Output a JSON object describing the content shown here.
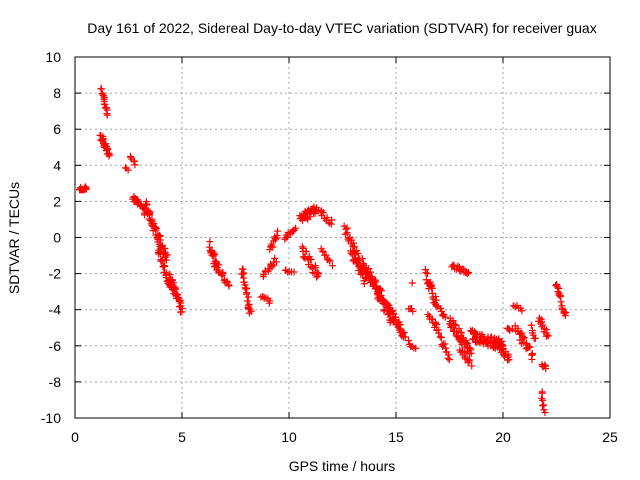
{
  "chart_data": {
    "type": "scatter",
    "title": "Day 161 of 2022, Sidereal Day-to-day VTEC variation (SDTVAR) for receiver guax",
    "xlabel": "GPS time / hours",
    "ylabel": "SDTVAR / TECUs",
    "xlim": [
      0,
      25
    ],
    "ylim": [
      -10,
      10
    ],
    "xticks": [
      0,
      5,
      10,
      15,
      20,
      25
    ],
    "yticks": [
      -10,
      -8,
      -6,
      -4,
      -2,
      0,
      2,
      4,
      6,
      8,
      10
    ],
    "grid": true,
    "marker": "+",
    "marker_color": "#ff0000",
    "series": [
      {
        "name": "SDTVAR",
        "segments": [
          {
            "x0": 0.2,
            "x1": 0.55,
            "y0": 2.7,
            "y1": 2.8,
            "spread": 0.25,
            "n": 18
          },
          {
            "x0": 1.25,
            "x1": 1.5,
            "y0": 8.2,
            "y1": 6.8,
            "spread": 0.3,
            "n": 18
          },
          {
            "x0": 1.2,
            "x1": 1.6,
            "y0": 5.6,
            "y1": 4.6,
            "spread": 0.4,
            "n": 22
          },
          {
            "x0": 2.35,
            "x1": 2.45,
            "y0": 3.9,
            "y1": 3.7,
            "spread": 0.1,
            "n": 3
          },
          {
            "x0": 2.6,
            "x1": 2.8,
            "y0": 4.5,
            "y1": 4.1,
            "spread": 0.15,
            "n": 6
          },
          {
            "x0": 2.7,
            "x1": 3.3,
            "y0": 2.3,
            "y1": 1.4,
            "spread": 0.4,
            "n": 22
          },
          {
            "x0": 3.3,
            "x1": 4.3,
            "y0": 1.8,
            "y1": -1.2,
            "spread": 0.6,
            "n": 55
          },
          {
            "x0": 3.9,
            "x1": 4.5,
            "y0": -0.8,
            "y1": -2.8,
            "spread": 0.5,
            "n": 30
          },
          {
            "x0": 4.4,
            "x1": 5.0,
            "y0": -2.2,
            "y1": -4.0,
            "spread": 0.6,
            "n": 34
          },
          {
            "x0": 6.3,
            "x1": 6.6,
            "y0": -0.3,
            "y1": -1.6,
            "spread": 0.5,
            "n": 16
          },
          {
            "x0": 6.5,
            "x1": 7.2,
            "y0": -1.4,
            "y1": -2.6,
            "spread": 0.4,
            "n": 20
          },
          {
            "x0": 7.8,
            "x1": 8.2,
            "y0": -1.8,
            "y1": -4.2,
            "spread": 0.6,
            "n": 24
          },
          {
            "x0": 8.7,
            "x1": 9.1,
            "y0": -3.2,
            "y1": -3.6,
            "spread": 0.2,
            "n": 8
          },
          {
            "x0": 8.8,
            "x1": 9.4,
            "y0": -2.2,
            "y1": -1.2,
            "spread": 0.4,
            "n": 14
          },
          {
            "x0": 9.1,
            "x1": 9.5,
            "y0": -0.8,
            "y1": 0.3,
            "spread": 0.4,
            "n": 12
          },
          {
            "x0": 9.8,
            "x1": 10.3,
            "y0": 0.0,
            "y1": 0.5,
            "spread": 0.3,
            "n": 12
          },
          {
            "x0": 9.8,
            "x1": 10.2,
            "y0": -1.8,
            "y1": -2.0,
            "spread": 0.2,
            "n": 6
          },
          {
            "x0": 10.5,
            "x1": 11.3,
            "y0": 1.0,
            "y1": 1.6,
            "spread": 0.5,
            "n": 34
          },
          {
            "x0": 10.6,
            "x1": 11.4,
            "y0": -0.6,
            "y1": -2.2,
            "spread": 0.6,
            "n": 26
          },
          {
            "x0": 11.4,
            "x1": 12.0,
            "y0": 1.4,
            "y1": 0.8,
            "spread": 0.4,
            "n": 12
          },
          {
            "x0": 11.5,
            "x1": 12.0,
            "y0": -0.8,
            "y1": -1.5,
            "spread": 0.4,
            "n": 10
          },
          {
            "x0": 12.6,
            "x1": 13.3,
            "y0": 0.6,
            "y1": -1.3,
            "spread": 0.5,
            "n": 22
          },
          {
            "x0": 12.9,
            "x1": 13.6,
            "y0": -0.8,
            "y1": -2.4,
            "spread": 0.6,
            "n": 26
          },
          {
            "x0": 13.4,
            "x1": 14.3,
            "y0": -1.4,
            "y1": -3.2,
            "spread": 0.6,
            "n": 44
          },
          {
            "x0": 14.1,
            "x1": 14.8,
            "y0": -3.0,
            "y1": -4.5,
            "spread": 0.6,
            "n": 34
          },
          {
            "x0": 14.6,
            "x1": 15.4,
            "y0": -3.8,
            "y1": -5.5,
            "spread": 0.6,
            "n": 40
          },
          {
            "x0": 15.6,
            "x1": 15.9,
            "y0": -5.8,
            "y1": -6.2,
            "spread": 0.2,
            "n": 6
          },
          {
            "x0": 15.6,
            "x1": 15.8,
            "y0": -3.9,
            "y1": -4.1,
            "spread": 0.2,
            "n": 4
          },
          {
            "x0": 15.7,
            "x1": 15.8,
            "y0": -2.5,
            "y1": -2.5,
            "spread": 0.05,
            "n": 1
          },
          {
            "x0": 16.4,
            "x1": 16.9,
            "y0": -2.0,
            "y1": -3.8,
            "spread": 0.6,
            "n": 24
          },
          {
            "x0": 16.5,
            "x1": 17.0,
            "y0": -4.4,
            "y1": -5.2,
            "spread": 0.4,
            "n": 14
          },
          {
            "x0": 17.0,
            "x1": 17.3,
            "y0": -3.8,
            "y1": -4.4,
            "spread": 0.3,
            "n": 8
          },
          {
            "x0": 17.1,
            "x1": 17.5,
            "y0": -5.5,
            "y1": -6.8,
            "spread": 0.4,
            "n": 12
          },
          {
            "x0": 17.6,
            "x1": 18.4,
            "y0": -1.6,
            "y1": -1.9,
            "spread": 0.25,
            "n": 16
          },
          {
            "x0": 17.5,
            "x1": 18.5,
            "y0": -4.6,
            "y1": -6.4,
            "spread": 0.6,
            "n": 40
          },
          {
            "x0": 18.0,
            "x1": 18.5,
            "y0": -6.2,
            "y1": -7.0,
            "spread": 0.4,
            "n": 12
          },
          {
            "x0": 18.5,
            "x1": 20.0,
            "y0": -5.4,
            "y1": -6.0,
            "spread": 0.6,
            "n": 60
          },
          {
            "x0": 19.7,
            "x1": 20.3,
            "y0": -5.6,
            "y1": -6.8,
            "spread": 0.6,
            "n": 22
          },
          {
            "x0": 20.2,
            "x1": 20.4,
            "y0": -5.0,
            "y1": -5.2,
            "spread": 0.3,
            "n": 5
          },
          {
            "x0": 20.5,
            "x1": 20.9,
            "y0": -3.7,
            "y1": -4.0,
            "spread": 0.2,
            "n": 6
          },
          {
            "x0": 20.6,
            "x1": 21.4,
            "y0": -5.0,
            "y1": -6.6,
            "spread": 0.6,
            "n": 26
          },
          {
            "x0": 21.3,
            "x1": 21.5,
            "y0": -5.0,
            "y1": -5.6,
            "spread": 0.3,
            "n": 6
          },
          {
            "x0": 21.7,
            "x1": 22.1,
            "y0": -4.4,
            "y1": -5.6,
            "spread": 0.5,
            "n": 14
          },
          {
            "x0": 21.8,
            "x1": 22.0,
            "y0": -7.0,
            "y1": -7.2,
            "spread": 0.2,
            "n": 6
          },
          {
            "x0": 21.8,
            "x1": 21.95,
            "y0": -8.5,
            "y1": -9.8,
            "spread": 0.3,
            "n": 8
          },
          {
            "x0": 22.5,
            "x1": 22.9,
            "y0": -2.6,
            "y1": -4.4,
            "spread": 0.5,
            "n": 18
          }
        ]
      }
    ]
  }
}
